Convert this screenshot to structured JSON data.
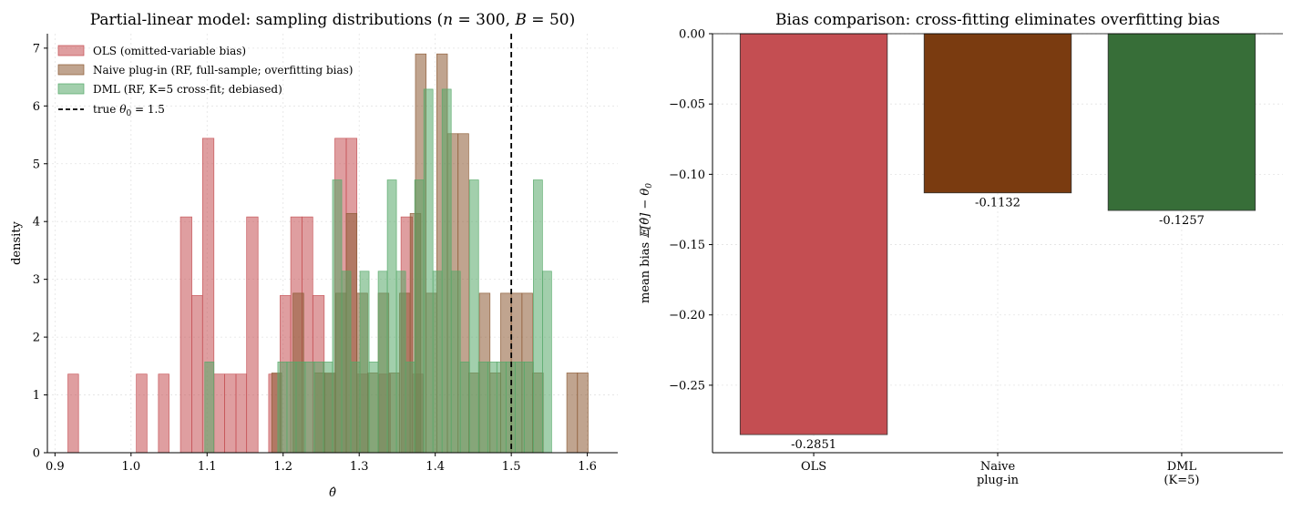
{
  "chart_data": [
    {
      "type": "histogram",
      "title_prefix": "Partial-linear model: sampling distributions (",
      "title_n": "n",
      "title_n_val": " = 300, ",
      "title_B": "B",
      "title_B_val": " = 50)",
      "xlabel": "θ̂",
      "ylabel": "density",
      "xlim": [
        0.89,
        1.64
      ],
      "ylim": [
        0,
        7.25
      ],
      "xticks": [
        "0.9",
        "1.0",
        "1.1",
        "1.2",
        "1.3",
        "1.4",
        "1.5",
        "1.6"
      ],
      "xtick_values": [
        0.9,
        1.0,
        1.1,
        1.2,
        1.3,
        1.4,
        1.5,
        1.6
      ],
      "yticks": [
        "0",
        "1",
        "2",
        "3",
        "4",
        "5",
        "6",
        "7"
      ],
      "ytick_values": [
        0,
        1,
        2,
        3,
        4,
        5,
        6,
        7
      ],
      "grid": true,
      "legend_placement": "upper-left",
      "series": [
        {
          "name": "OLS (omitted-variable bias)",
          "color": "#c44e52",
          "bins": [
            [
              0.917,
              0.931,
              1.36
            ],
            [
              1.007,
              1.021,
              1.36
            ],
            [
              1.036,
              1.05,
              1.36
            ],
            [
              1.065,
              1.08,
              4.08
            ],
            [
              1.08,
              1.094,
              2.72
            ],
            [
              1.094,
              1.109,
              5.44
            ],
            [
              1.109,
              1.123,
              1.36
            ],
            [
              1.123,
              1.138,
              1.36
            ],
            [
              1.138,
              1.152,
              1.36
            ],
            [
              1.152,
              1.167,
              4.08
            ],
            [
              1.181,
              1.196,
              1.36
            ],
            [
              1.196,
              1.21,
              2.72
            ],
            [
              1.21,
              1.225,
              4.08
            ],
            [
              1.225,
              1.239,
              4.08
            ],
            [
              1.239,
              1.254,
              2.72
            ],
            [
              1.254,
              1.268,
              1.36
            ],
            [
              1.268,
              1.283,
              5.44
            ],
            [
              1.283,
              1.297,
              5.44
            ],
            [
              1.297,
              1.312,
              1.36
            ],
            [
              1.326,
              1.341,
              1.36
            ],
            [
              1.355,
              1.37,
              4.08
            ],
            [
              1.37,
              1.384,
              1.36
            ]
          ]
        },
        {
          "name": "Naive plug-in (RF, full-sample; overfitting bias)",
          "color": "#8c5a33",
          "bins": [
            [
              1.185,
              1.198,
              1.38
            ],
            [
              1.213,
              1.227,
              2.76
            ],
            [
              1.241,
              1.255,
              1.38
            ],
            [
              1.255,
              1.269,
              1.38
            ],
            [
              1.269,
              1.283,
              2.76
            ],
            [
              1.283,
              1.297,
              4.14
            ],
            [
              1.297,
              1.311,
              2.76
            ],
            [
              1.311,
              1.325,
              1.38
            ],
            [
              1.325,
              1.339,
              2.76
            ],
            [
              1.339,
              1.353,
              1.38
            ],
            [
              1.353,
              1.367,
              2.76
            ],
            [
              1.367,
              1.381,
              4.14
            ],
            [
              1.374,
              1.388,
              6.9
            ],
            [
              1.388,
              1.402,
              2.76
            ],
            [
              1.402,
              1.416,
              6.9
            ],
            [
              1.416,
              1.43,
              5.52
            ],
            [
              1.43,
              1.444,
              5.52
            ],
            [
              1.444,
              1.458,
              1.38
            ],
            [
              1.458,
              1.472,
              2.76
            ],
            [
              1.472,
              1.486,
              1.38
            ],
            [
              1.486,
              1.5,
              2.76
            ],
            [
              1.5,
              1.514,
              2.76
            ],
            [
              1.514,
              1.528,
              2.76
            ],
            [
              1.528,
              1.542,
              1.38
            ],
            [
              1.573,
              1.587,
              1.38
            ],
            [
              1.587,
              1.601,
              1.38
            ]
          ]
        },
        {
          "name": "DML (RF, K=5 cross-fit; debiased)",
          "color": "#55a868",
          "bins": [
            [
              1.097,
              1.109,
              1.57
            ],
            [
              1.193,
              1.205,
              1.57
            ],
            [
              1.205,
              1.217,
              1.57
            ],
            [
              1.217,
              1.229,
              1.57
            ],
            [
              1.229,
              1.241,
              1.57
            ],
            [
              1.241,
              1.253,
              1.57
            ],
            [
              1.253,
              1.265,
              1.57
            ],
            [
              1.265,
              1.277,
              4.72
            ],
            [
              1.277,
              1.289,
              3.14
            ],
            [
              1.289,
              1.301,
              1.57
            ],
            [
              1.301,
              1.313,
              3.14
            ],
            [
              1.313,
              1.325,
              1.57
            ],
            [
              1.325,
              1.337,
              3.14
            ],
            [
              1.337,
              1.349,
              4.72
            ],
            [
              1.349,
              1.361,
              3.14
            ],
            [
              1.361,
              1.373,
              1.57
            ],
            [
              1.373,
              1.385,
              4.72
            ],
            [
              1.385,
              1.397,
              6.29
            ],
            [
              1.397,
              1.409,
              3.14
            ],
            [
              1.409,
              1.421,
              6.29
            ],
            [
              1.421,
              1.433,
              3.14
            ],
            [
              1.433,
              1.445,
              1.57
            ],
            [
              1.445,
              1.457,
              4.72
            ],
            [
              1.457,
              1.469,
              1.57
            ],
            [
              1.469,
              1.481,
              1.57
            ],
            [
              1.481,
              1.493,
              1.57
            ],
            [
              1.493,
              1.505,
              1.57
            ],
            [
              1.505,
              1.517,
              1.57
            ],
            [
              1.517,
              1.529,
              1.57
            ],
            [
              1.529,
              1.541,
              4.72
            ],
            [
              1.541,
              1.553,
              3.14
            ]
          ]
        }
      ],
      "vline": {
        "label_prefix": "true ",
        "label_symbol": "θ",
        "label_sub": "0",
        "label_suffix": " = 1.5",
        "x": 1.5,
        "color": "#000000"
      }
    },
    {
      "type": "bar",
      "title": "Bias comparison: cross-fitting eliminates overfitting bias",
      "ylabel_prefix": "mean bias  ",
      "ylabel_math": "𝔼[θ̂] − θ",
      "ylabel_sub": "0",
      "categories": [
        [
          "OLS"
        ],
        [
          "Naive",
          "plug-in"
        ],
        [
          "DML",
          "(K=5)"
        ]
      ],
      "values": [
        -0.2851,
        -0.1132,
        -0.1257
      ],
      "value_labels": [
        "-0.2851",
        "-0.1132",
        "-0.1257"
      ],
      "colors": [
        "#c44e52",
        "#7a3b10",
        "#376e38"
      ],
      "ylim": [
        -0.298,
        0.0
      ],
      "yticks": [
        "0.00",
        "−0.05",
        "−0.10",
        "−0.15",
        "−0.20",
        "−0.25"
      ],
      "ytick_values": [
        0.0,
        -0.05,
        -0.1,
        -0.15,
        -0.2,
        -0.25
      ],
      "grid": true
    }
  ]
}
